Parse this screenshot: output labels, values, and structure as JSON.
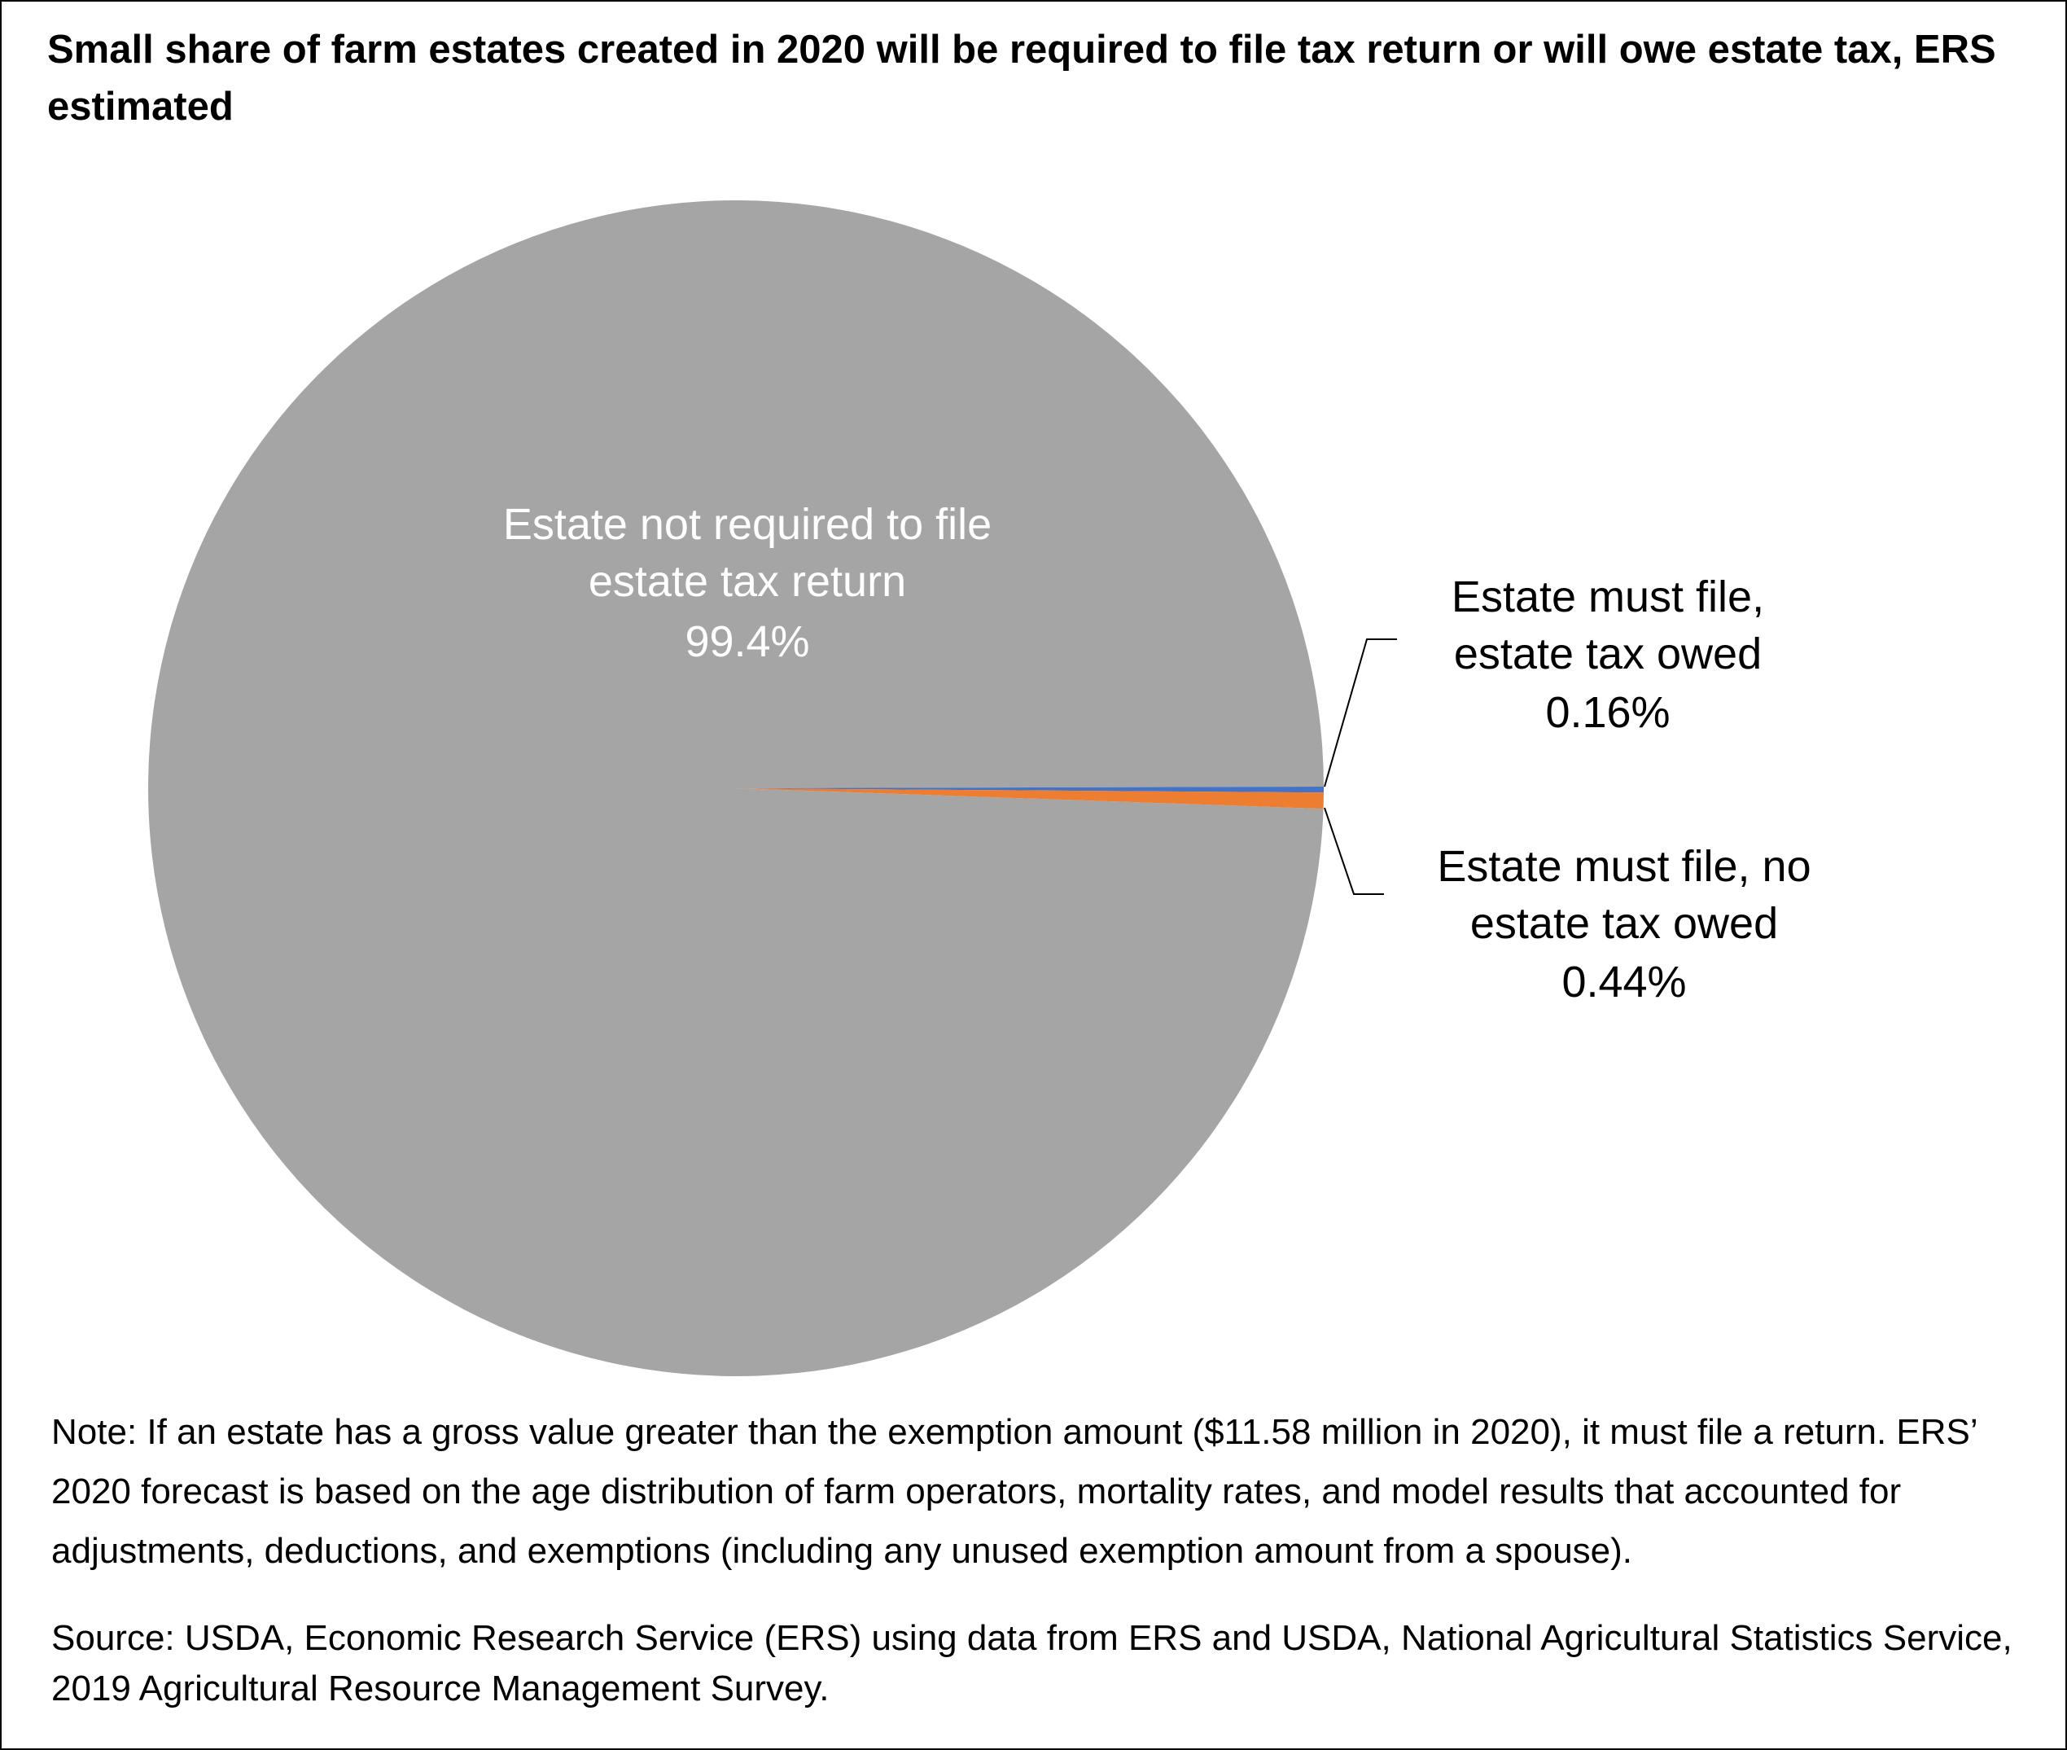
{
  "chart_data": {
    "type": "pie",
    "title": "Small share of farm estates created in 2020 will be required to file tax return or will owe estate tax, ERS estimated",
    "categories": [
      "Estate not required to file estate tax return",
      "Estate must file, estate tax owed",
      "Estate must file, no estate tax owed"
    ],
    "values": [
      99.4,
      0.16,
      0.44
    ],
    "value_labels": [
      "99.4%",
      "0.16%",
      "0.44%"
    ],
    "colors": [
      "#a5a5a5",
      "#4472c4",
      "#ed7d31"
    ],
    "note": "Note: If an estate has a gross value greater than the exemption amount ($11.58 million in 2020), it must file a return. ERS’ 2020 forecast is based on the age distribution of farm operators, mortality rates, and model results that accounted for adjustments, deductions, and exemptions (including any unused exemption amount from a spouse).",
    "source": "Source: USDA, Economic Research Service (ERS) using data from ERS and USDA, National Agricultural Statistics Service, 2019 Agricultural Resource Management Survey."
  }
}
